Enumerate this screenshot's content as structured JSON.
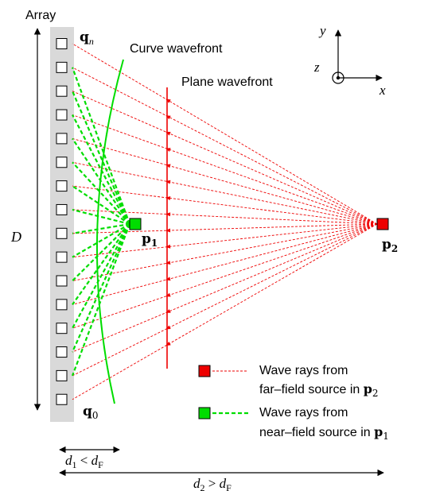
{
  "array_label": "Array",
  "element_count": 16,
  "labels": {
    "qn_main": "q",
    "qn_sub": "n",
    "q0_main": "q",
    "q0_sub": "0",
    "p1_main": "p",
    "p1_sub": "1",
    "p2_main": "p",
    "p2_sub": "2",
    "D": "D",
    "curve_wavefront": "Curve wavefront",
    "plane_wavefront": "Plane wavefront"
  },
  "axes": {
    "y": "y",
    "z": "z",
    "x": "x"
  },
  "legend": {
    "far_line1": "Wave rays from",
    "far_line2_prefix": "far–field source in ",
    "far_sym": "p",
    "far_sub": "2",
    "near_line1": "Wave rays from",
    "near_line2_prefix": "near–field source in ",
    "near_sym": "p",
    "near_sub": "1"
  },
  "distances": {
    "d1_var": "d",
    "d1_sub": "1",
    "d1_rel": " < ",
    "d1_F": "d",
    "d1_Fsub": "F",
    "d2_var": "d",
    "d2_sub": "2",
    "d2_rel": " > ",
    "d2_F": "d",
    "d2_Fsub": "F"
  },
  "colors": {
    "near_field": "#00dd00",
    "far_field": "#ee0000",
    "array_bg": "#d9d9d9"
  }
}
